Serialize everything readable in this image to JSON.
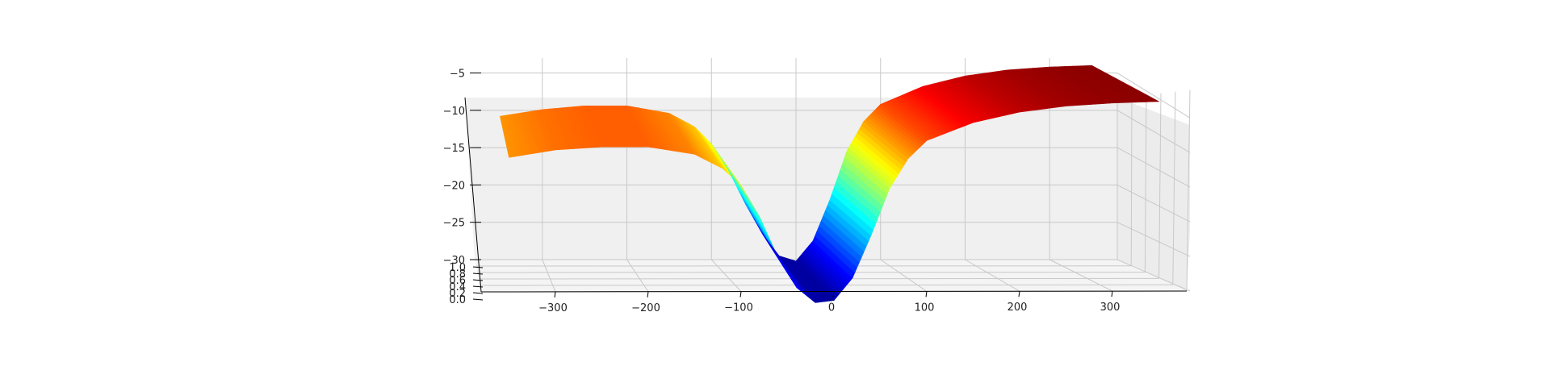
{
  "chart_data": {
    "type": "surface3d",
    "title": "",
    "xlabel": "",
    "ylabel": "",
    "zlabel": "",
    "colormap": "jet",
    "x_ticks": [
      "−300",
      "−200",
      "−100",
      "0",
      "100",
      "200",
      "300"
    ],
    "x_tick_values": [
      -300,
      -200,
      -100,
      0,
      100,
      200,
      300
    ],
    "y_ticks": [
      "0.0",
      "0.2",
      "0.4",
      "0.6",
      "0.8",
      "1.0"
    ],
    "y_tick_values": [
      0.0,
      0.2,
      0.4,
      0.6,
      0.8,
      1.0
    ],
    "z_ticks": [
      "−30",
      "−25",
      "−20",
      "−15",
      "−10",
      "−5"
    ],
    "z_tick_values": [
      -30,
      -25,
      -20,
      -15,
      -10,
      -5
    ],
    "xlim": [
      -380,
      380
    ],
    "ylim": [
      0,
      1
    ],
    "zlim": [
      -30,
      -3
    ],
    "grid": true,
    "surface_profile": {
      "x": [
        -350,
        -300,
        -250,
        -200,
        -150,
        -120,
        -100,
        -80,
        -60,
        -40,
        -20,
        0,
        20,
        40,
        60,
        80,
        100,
        150,
        200,
        250,
        300,
        350
      ],
      "z_back": [
        -10.8,
        -9.9,
        -9.4,
        -9.4,
        -10.4,
        -12.2,
        -14.5,
        -18.0,
        -22.5,
        -26.5,
        -29.5,
        -30.2,
        -27.5,
        -22.0,
        -15.5,
        -11.5,
        -9.2,
        -6.8,
        -5.4,
        -4.6,
        -4.2,
        -4.0
      ],
      "z_front": [
        -12.0,
        -11.0,
        -10.6,
        -10.6,
        -11.6,
        -13.5,
        -15.8,
        -20.0,
        -25.5,
        -29.5,
        -31.5,
        -31.2,
        -28.2,
        -22.5,
        -16.2,
        -12.2,
        -9.8,
        -7.4,
        -6.0,
        -5.2,
        -4.8,
        -4.6
      ]
    }
  }
}
